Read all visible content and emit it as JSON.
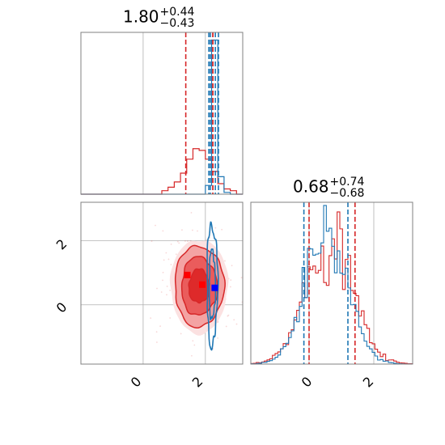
{
  "chart_data": [
    {
      "panel": "hist-param1",
      "type": "histogram",
      "title": {
        "median": "1.80",
        "plus": "+0.44",
        "minus": "−0.43"
      },
      "xlim": [
        -2.0,
        3.2
      ],
      "grid": true,
      "series": [
        {
          "color": "#d62728",
          "bin_edges": [
            -2.0,
            -1.8,
            -1.6,
            -1.4,
            -1.2,
            -1.0,
            -0.8,
            -0.6,
            -0.4,
            -0.2,
            0.0,
            0.2,
            0.4,
            0.6,
            0.8,
            1.0,
            1.2,
            1.4,
            1.6,
            1.8,
            2.0,
            2.2,
            2.4,
            2.6,
            2.8,
            3.0,
            3.2
          ],
          "counts": [
            0,
            0,
            0,
            0,
            0,
            0,
            0,
            0,
            0,
            0,
            0,
            0,
            0,
            0.02,
            0.04,
            0.07,
            0.12,
            0.2,
            0.26,
            0.25,
            0.2,
            0.13,
            0.06,
            0.03,
            0.02,
            0
          ],
          "quantiles": [
            1.37,
            2.24
          ]
        },
        {
          "color": "#1f77b4",
          "bin_edges": [
            -2.0,
            -1.8,
            -1.6,
            -1.4,
            -1.2,
            -1.0,
            -0.8,
            -0.6,
            -0.4,
            -0.2,
            0.0,
            0.2,
            0.4,
            0.6,
            0.8,
            1.0,
            1.2,
            1.4,
            1.6,
            1.8,
            2.0,
            2.2,
            2.4,
            2.6,
            2.8,
            3.0,
            3.2
          ],
          "counts": [
            0,
            0,
            0,
            0,
            0,
            0,
            0,
            0,
            0,
            0,
            0,
            0,
            0,
            0,
            0,
            0,
            0,
            0,
            0,
            0,
            0.05,
            0.88,
            0.1,
            0.01,
            0,
            0
          ],
          "quantiles": [
            2.11,
            2.42
          ]
        }
      ],
      "markers": [
        {
          "x": 2.16,
          "color": "#1f77b4"
        },
        {
          "x": 2.24,
          "color": "#d62728"
        },
        {
          "x": 2.32,
          "color": "#1f77b4"
        }
      ]
    },
    {
      "panel": "hist-param2",
      "type": "histogram",
      "title": {
        "median": "0.68",
        "plus": "+0.74",
        "minus": "−0.68"
      },
      "xlim": [
        -1.8,
        3.2
      ],
      "xticks": [
        0,
        2
      ],
      "grid": true,
      "series": [
        {
          "color": "#d62728",
          "quantiles": [
            0.0,
            1.42
          ],
          "shape": {
            "mean": 0.65,
            "sd": 0.72
          }
        },
        {
          "color": "#1f77b4",
          "quantiles": [
            -0.16,
            1.2
          ],
          "shape": {
            "mean": 0.55,
            "sd": 0.65
          }
        }
      ]
    },
    {
      "panel": "2d-contour",
      "type": "contour",
      "xlim": [
        -2.0,
        3.2
      ],
      "ylim": [
        -1.85,
        3.2
      ],
      "xticks": [
        0,
        2
      ],
      "yticks": [
        0,
        2
      ],
      "grid": true,
      "red_contours": {
        "center": [
          1.8,
          0.68
        ],
        "sigma": [
          0.44,
          0.7
        ]
      },
      "blue_contour": {
        "center": [
          2.22,
          0.62
        ],
        "sigma": [
          0.09,
          0.75
        ]
      },
      "points": [
        {
          "x": 1.42,
          "y": 0.93,
          "color": "#ff0000"
        },
        {
          "x": 1.9,
          "y": 0.63,
          "color": "#ff0000"
        },
        {
          "x": 2.3,
          "y": 0.53,
          "color": "#0000ff"
        }
      ]
    }
  ],
  "ticks": {
    "x_label_0": "0",
    "x_label_2": "2",
    "y_label_0": "0",
    "y_label_2": "2"
  }
}
